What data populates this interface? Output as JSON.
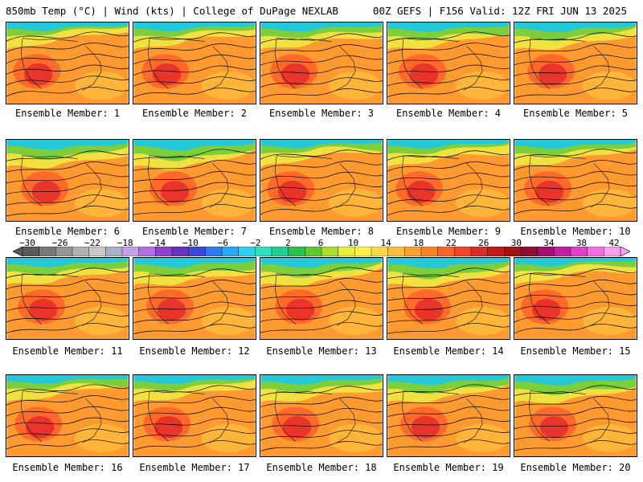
{
  "header": {
    "left": "850mb Temp (°C) | Wind (kts) | College of DuPage NEXLAB",
    "right": "00Z GEFS | F156 Valid: 12Z FRI JUN 13 2025"
  },
  "panels": [
    {
      "label": "Ensemble Member: 1"
    },
    {
      "label": "Ensemble Member: 2"
    },
    {
      "label": "Ensemble Member: 3"
    },
    {
      "label": "Ensemble Member: 4"
    },
    {
      "label": "Ensemble Member: 5"
    },
    {
      "label": "Ensemble Member: 6"
    },
    {
      "label": "Ensemble Member: 7"
    },
    {
      "label": "Ensemble Member: 8"
    },
    {
      "label": "Ensemble Member: 9"
    },
    {
      "label": "Ensemble Member: 10"
    },
    {
      "label": "Ensemble Member: 11"
    },
    {
      "label": "Ensemble Member: 12"
    },
    {
      "label": "Ensemble Member: 13"
    },
    {
      "label": "Ensemble Member: 14"
    },
    {
      "label": "Ensemble Member: 15"
    },
    {
      "label": "Ensemble Member: 16"
    },
    {
      "label": "Ensemble Member: 17"
    },
    {
      "label": "Ensemble Member: 18"
    },
    {
      "label": "Ensemble Member: 19"
    },
    {
      "label": "Ensemble Member: 20"
    }
  ],
  "colorbar": {
    "tick_labels": [
      "−30",
      "−26",
      "−22",
      "−18",
      "−14",
      "−10",
      "−6",
      "−2",
      "2",
      "6",
      "10",
      "14",
      "18",
      "22",
      "26",
      "30",
      "34",
      "38",
      "42"
    ],
    "colors": [
      "#5a5a5a",
      "#787878",
      "#959595",
      "#b0b0b0",
      "#c8c8c8",
      "#a9b0c8",
      "#c6a0e6",
      "#b070e0",
      "#9040d0",
      "#6a30c0",
      "#3f48d6",
      "#2f78f0",
      "#28a8f5",
      "#30d0f0",
      "#30e0c0",
      "#20d090",
      "#30c050",
      "#60c830",
      "#a8dc30",
      "#e6f03c",
      "#fff04a",
      "#ffd84a",
      "#ffbe3c",
      "#ffa030",
      "#ff8228",
      "#ff6428",
      "#f04628",
      "#dc2c28",
      "#c01c1c",
      "#a01414",
      "#8c1030",
      "#a01070",
      "#c020a0",
      "#e040c8",
      "#f070e0",
      "#f8a0f0"
    ]
  }
}
